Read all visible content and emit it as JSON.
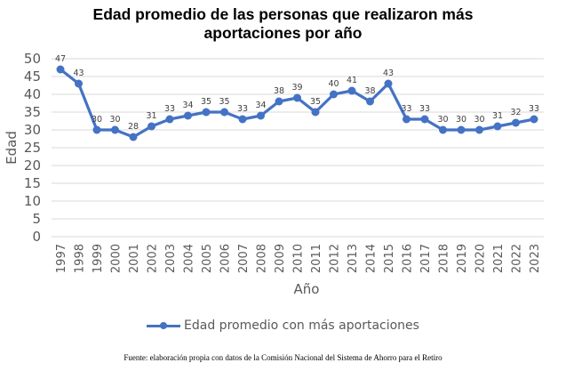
{
  "chart_data": {
    "type": "line",
    "title": "Edad promedio de las personas que realizaron más aportaciones por año",
    "title_lines": [
      "Edad promedio de las personas que realizaron más",
      "aportaciones por año"
    ],
    "xlabel": "Año",
    "ylabel": "Edad",
    "ylim": [
      0,
      50
    ],
    "yticks": [
      0,
      5,
      10,
      15,
      20,
      25,
      30,
      35,
      40,
      45,
      50
    ],
    "grid": true,
    "legend_position": "bottom",
    "categories": [
      "1997",
      "1998",
      "1999",
      "2000",
      "2001",
      "2002",
      "2003",
      "2004",
      "2005",
      "2006",
      "2007",
      "2008",
      "2009",
      "2010",
      "2011",
      "2012",
      "2013",
      "2014",
      "2015",
      "2016",
      "2017",
      "2018",
      "2019",
      "2020",
      "2021",
      "2022",
      "2023"
    ],
    "series": [
      {
        "name": "Edad promedio con más aportaciones",
        "color": "#4472c4",
        "values": [
          47,
          43,
          30,
          30,
          28,
          31,
          33,
          34,
          35,
          35,
          33,
          34,
          38,
          39,
          35,
          40,
          41,
          38,
          43,
          33,
          33,
          30,
          30,
          30,
          31,
          32,
          33
        ]
      }
    ],
    "source": "Fuente: elaboración propia con datos de la Comisión Nacional del Sistema de Ahorro para el Retiro"
  }
}
